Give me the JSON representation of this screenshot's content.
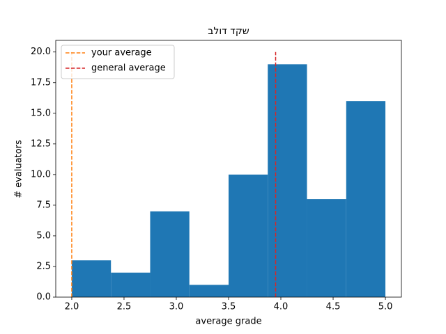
{
  "chart_data": {
    "type": "histogram",
    "title": "שקד דולב",
    "xlabel": "average grade",
    "ylabel": "# evaluators",
    "bins": [
      2.0,
      2.375,
      2.75,
      3.125,
      3.5,
      3.875,
      4.25,
      4.625,
      5.0
    ],
    "counts": [
      3,
      2,
      7,
      1,
      10,
      19,
      8,
      16
    ],
    "color": "#1f77b4",
    "lines": [
      {
        "name": "your average",
        "color": "#ff7f0e",
        "x": 2.0,
        "y": [
          0,
          20
        ]
      },
      {
        "name": "general average",
        "color": "#d62728",
        "x": 3.95,
        "y": [
          0,
          20
        ]
      }
    ],
    "xlim": [
      1.847,
      5.153
    ],
    "xticks": [
      {
        "value": 2,
        "label": "2.0"
      },
      2.5,
      {
        "value": 3,
        "label": "3.0"
      },
      3.5,
      {
        "value": 4,
        "label": "4.0"
      },
      4.5,
      {
        "value": 5,
        "label": "5.0"
      }
    ],
    "ylim": [
      0,
      20.95
    ],
    "yticks": [
      {
        "value": 0,
        "label": "0.0"
      },
      2.5,
      {
        "value": 5,
        "label": "5.0"
      },
      7.5,
      {
        "value": 10,
        "label": "10.0"
      },
      12.5,
      {
        "value": 15,
        "label": "15.0"
      },
      17.5,
      {
        "value": 20,
        "label": "20.0"
      }
    ],
    "legend": "upper left"
  }
}
